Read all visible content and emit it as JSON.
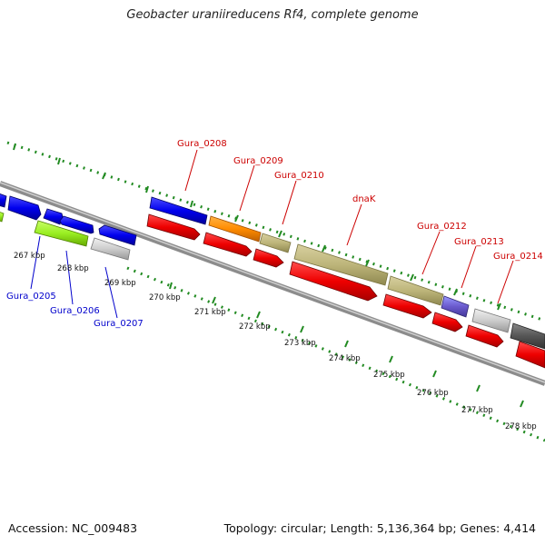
{
  "title": "Geobacter uraniireducens Rf4, complete genome",
  "accession": "Accession: NC_009483",
  "summary": "Topology: circular; Length: 5,136,364 bp; Genes: 4,414",
  "colors": {
    "top_labels": "#cc0000",
    "bottom_labels": "#0000cc",
    "gc_dots": "#228b22",
    "backbone": "#8c8c8c"
  },
  "kbp_ticks": [
    "267 kbp",
    "268 kbp",
    "269 kbp",
    "270 kbp",
    "271 kbp",
    "272 kbp",
    "273 kbp",
    "274 kbp",
    "275 kbp",
    "276 kbp",
    "277 kbp",
    "278 kbp"
  ],
  "gene_labels_top": [
    "Gura_0208",
    "Gura_0209",
    "Gura_0210",
    "dnaK",
    "Gura_0212",
    "Gura_0213",
    "Gura_0214"
  ],
  "gene_labels_bottom": [
    "Gura_0205",
    "Gura_0206",
    "Gura_0207"
  ]
}
